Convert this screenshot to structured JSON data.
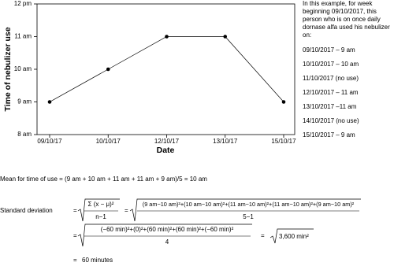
{
  "chart_data": {
    "type": "line",
    "x_label": "Date",
    "y_label": "Time of nebulizer use",
    "categories": [
      "09/10/17",
      "10/10/17",
      "12/10/17",
      "13/10/17",
      "15/10/17"
    ],
    "values": [
      9,
      10,
      11,
      11,
      9
    ],
    "color": "#000000",
    "ylim": [
      8,
      12
    ],
    "yticks": [
      {
        "value": 8,
        "label": "8 am"
      },
      {
        "value": 9,
        "label": "9 am"
      },
      {
        "value": 10,
        "label": "10 am"
      },
      {
        "value": 11,
        "label": "11 am"
      },
      {
        "value": 12,
        "label": "12 pm"
      }
    ]
  },
  "note": {
    "intro": "In this example, for week beginning 09/10/2017, this person who is on once daily dornase alfa used his nebulizer on:",
    "days": [
      "09/10/2017 – 9 am",
      "10/10/2017 – 10 am",
      "11/10/2017 (no use)",
      "12/10/2017 – 11 am",
      "13/10/2017 –11 am",
      "14/10/2017 (no use)",
      "15/10/2017 – 9 am"
    ]
  },
  "calculation": {
    "mean": "Mean for time of use = (9 am + 10 am + 11 am + 11 am + 9 am)/5 = 10 am",
    "sd_label": "Standard deviation",
    "eq1": "=",
    "formula_num": "Σ (x − μ)²",
    "formula_den": "n−1",
    "eq2": "=",
    "step1_num": "(9 am−10 am)²+(10 am−10 am)²+(11 am−10 am)²+(11 am−10 am)²+(9 am−10 am)²",
    "step1_den": "5−1",
    "eq3": "=",
    "step2_num": "(−60 min)²+(0)²+(60 min)²+(60 min)²+(−60 min)²",
    "step2_den": "4",
    "eq4": "=",
    "step3": "3,600 min²",
    "eq5": "=",
    "result": "60 minutes"
  }
}
